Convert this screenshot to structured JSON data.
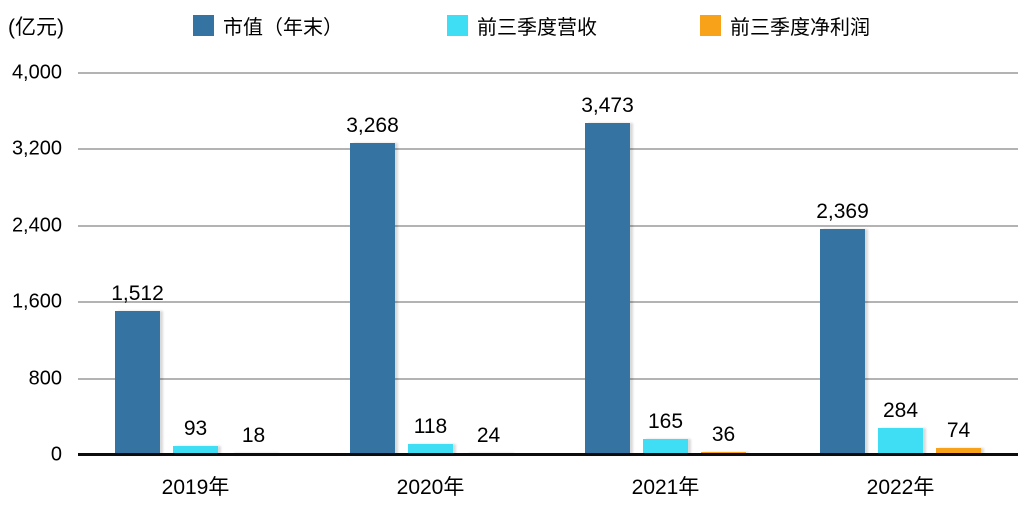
{
  "chart_data": {
    "type": "bar",
    "unit_label": "(亿元)",
    "categories": [
      "2019年",
      "2020年",
      "2021年",
      "2022年"
    ],
    "series": [
      {
        "name": "市值（年末）",
        "color": "#3573a3",
        "values": [
          1512,
          3268,
          3473,
          2369
        ],
        "labels": [
          "1,512",
          "3,268",
          "3,473",
          "2,369"
        ]
      },
      {
        "name": "前三季度营收",
        "color": "#3fdef5",
        "values": [
          93,
          118,
          165,
          284
        ],
        "labels": [
          "93",
          "118",
          "165",
          "284"
        ]
      },
      {
        "name": "前三季度净利润",
        "color": "#f7a219",
        "values": [
          18,
          24,
          36,
          74
        ],
        "labels": [
          "18",
          "24",
          "36",
          "74"
        ]
      }
    ],
    "ylim": [
      0,
      4000
    ],
    "ytick_step": 800,
    "yticks": [
      "4,000",
      "3,200",
      "2,400",
      "1,600",
      "800",
      "0"
    ],
    "grid": true,
    "legend_position": "top",
    "gridline_color": "#b3b3b3",
    "axis_color": "#0d0d0d"
  }
}
